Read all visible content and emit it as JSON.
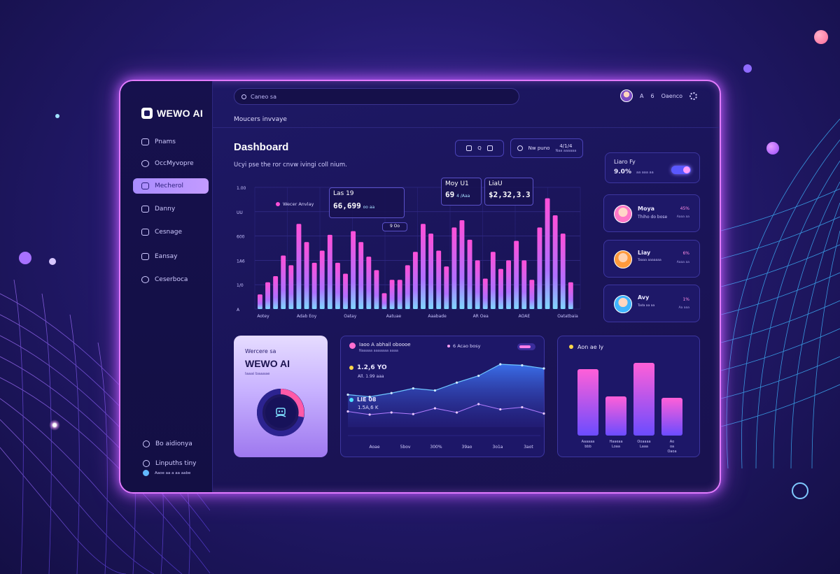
{
  "app": {
    "name": "WEWO AI"
  },
  "sidebar": {
    "items": [
      {
        "label": "Pnams",
        "active": false
      },
      {
        "label": "OccMyvopre",
        "active": false
      },
      {
        "label": "Mecherol",
        "active": true
      },
      {
        "label": "Danny",
        "active": false
      },
      {
        "label": "Cesnage",
        "active": false
      },
      {
        "label": "Eansay",
        "active": false
      },
      {
        "label": "Ceserboca",
        "active": false
      }
    ],
    "bottom": [
      {
        "label": "Bo aidionya"
      },
      {
        "label": "Linpuths tiny"
      }
    ],
    "footer_note": "Aaoe aa a aa aabe"
  },
  "header": {
    "search_placeholder": "Caneo sa",
    "user_initial": "A",
    "counter": "6",
    "user_label": "Oaenco",
    "subtitle": "Moucers invvaye"
  },
  "dashboard": {
    "title": "Dashboard",
    "description": "Ucyi pse the ror cnvw ivingi coll nium.",
    "button_left": "Q",
    "button_right_label": "Nw puno",
    "button_right_value": "4/1/4",
    "button_right_sub": "Naa aaaaaa"
  },
  "chart_data": {
    "type": "bar",
    "ylabels": [
      "1.00",
      "UU",
      "600",
      "1A6",
      "1/0",
      "A"
    ],
    "xlabels": [
      "Aotey",
      "Adab Eoy",
      "Oatay",
      "Aatuae",
      "Aaabade",
      "AR Oea",
      "AOAE",
      "Oatatbaia"
    ],
    "values": [
      12,
      22,
      27,
      44,
      36,
      70,
      55,
      38,
      48,
      61,
      38,
      29,
      64,
      55,
      43,
      32,
      13,
      24,
      24,
      36,
      47,
      70,
      62,
      48,
      35,
      67,
      73,
      57,
      40,
      25,
      47,
      33,
      40,
      56,
      40,
      24,
      67,
      91,
      77,
      62,
      22
    ],
    "color_top": "#ff4fd8",
    "color_bottom": "#7fd8ff",
    "tooltips": [
      {
        "title": "Las 19",
        "value": "66,699",
        "sub": "oo aa"
      },
      {
        "title": "Moy U1",
        "value": "69",
        "sub": "4 /Aaa"
      },
      {
        "title": "LiaU",
        "value": "$2,32,3.3",
        "sub": ""
      }
    ],
    "legend_label": "Wecer Anvlay",
    "marker_label": "9 Oo"
  },
  "right_cards": {
    "toggle_card": {
      "title": "Liaro Fy",
      "value": "9.0%",
      "sub": "aa aaa aa"
    },
    "profiles": [
      {
        "name": "Moya",
        "sub": "Thiho do bose",
        "stat": "45%",
        "stat_sub": "Aaaa aa"
      },
      {
        "name": "Liay",
        "sub": "Taaaa aaaaaaa",
        "stat": "6%",
        "stat_sub": "Aaaa aa"
      },
      {
        "name": "Avy",
        "sub": "Tada aa aa",
        "stat": "1%",
        "stat_sub": "Aa aaa"
      }
    ]
  },
  "welcome_card": {
    "line1": "Wercere sa",
    "line2": "WEWO AI",
    "line3": "Iaaai baaaae"
  },
  "line_panel": {
    "title": "Iaoo A abhail oboooe",
    "subtitle": "Naaaaa aaaaaaa aaaa",
    "pill": "6 Acao bosy",
    "stat1": "1.2,6 YO",
    "stat1_sub": "All. 1.99 aaa",
    "stat2": "LIE 08",
    "stat2_sub": "1.5A,6 K",
    "xlabels": [
      "Aoae",
      "5bov",
      "300%",
      "39ao",
      "3o1a",
      "3aot"
    ],
    "line1": [
      62,
      58,
      65,
      74,
      70,
      85,
      98,
      120,
      118,
      112
    ],
    "line2": [
      30,
      24,
      28,
      25,
      36,
      28,
      44,
      34,
      38,
      26
    ]
  },
  "bar_panel": {
    "title": "Aon ae ly",
    "values": [
      95,
      56,
      104,
      54
    ],
    "labels": [
      "Aaaaaa bbb",
      "Haaeaa Loaa",
      "Ooaaaa Laaa",
      "Ao oa Oaoa"
    ]
  }
}
